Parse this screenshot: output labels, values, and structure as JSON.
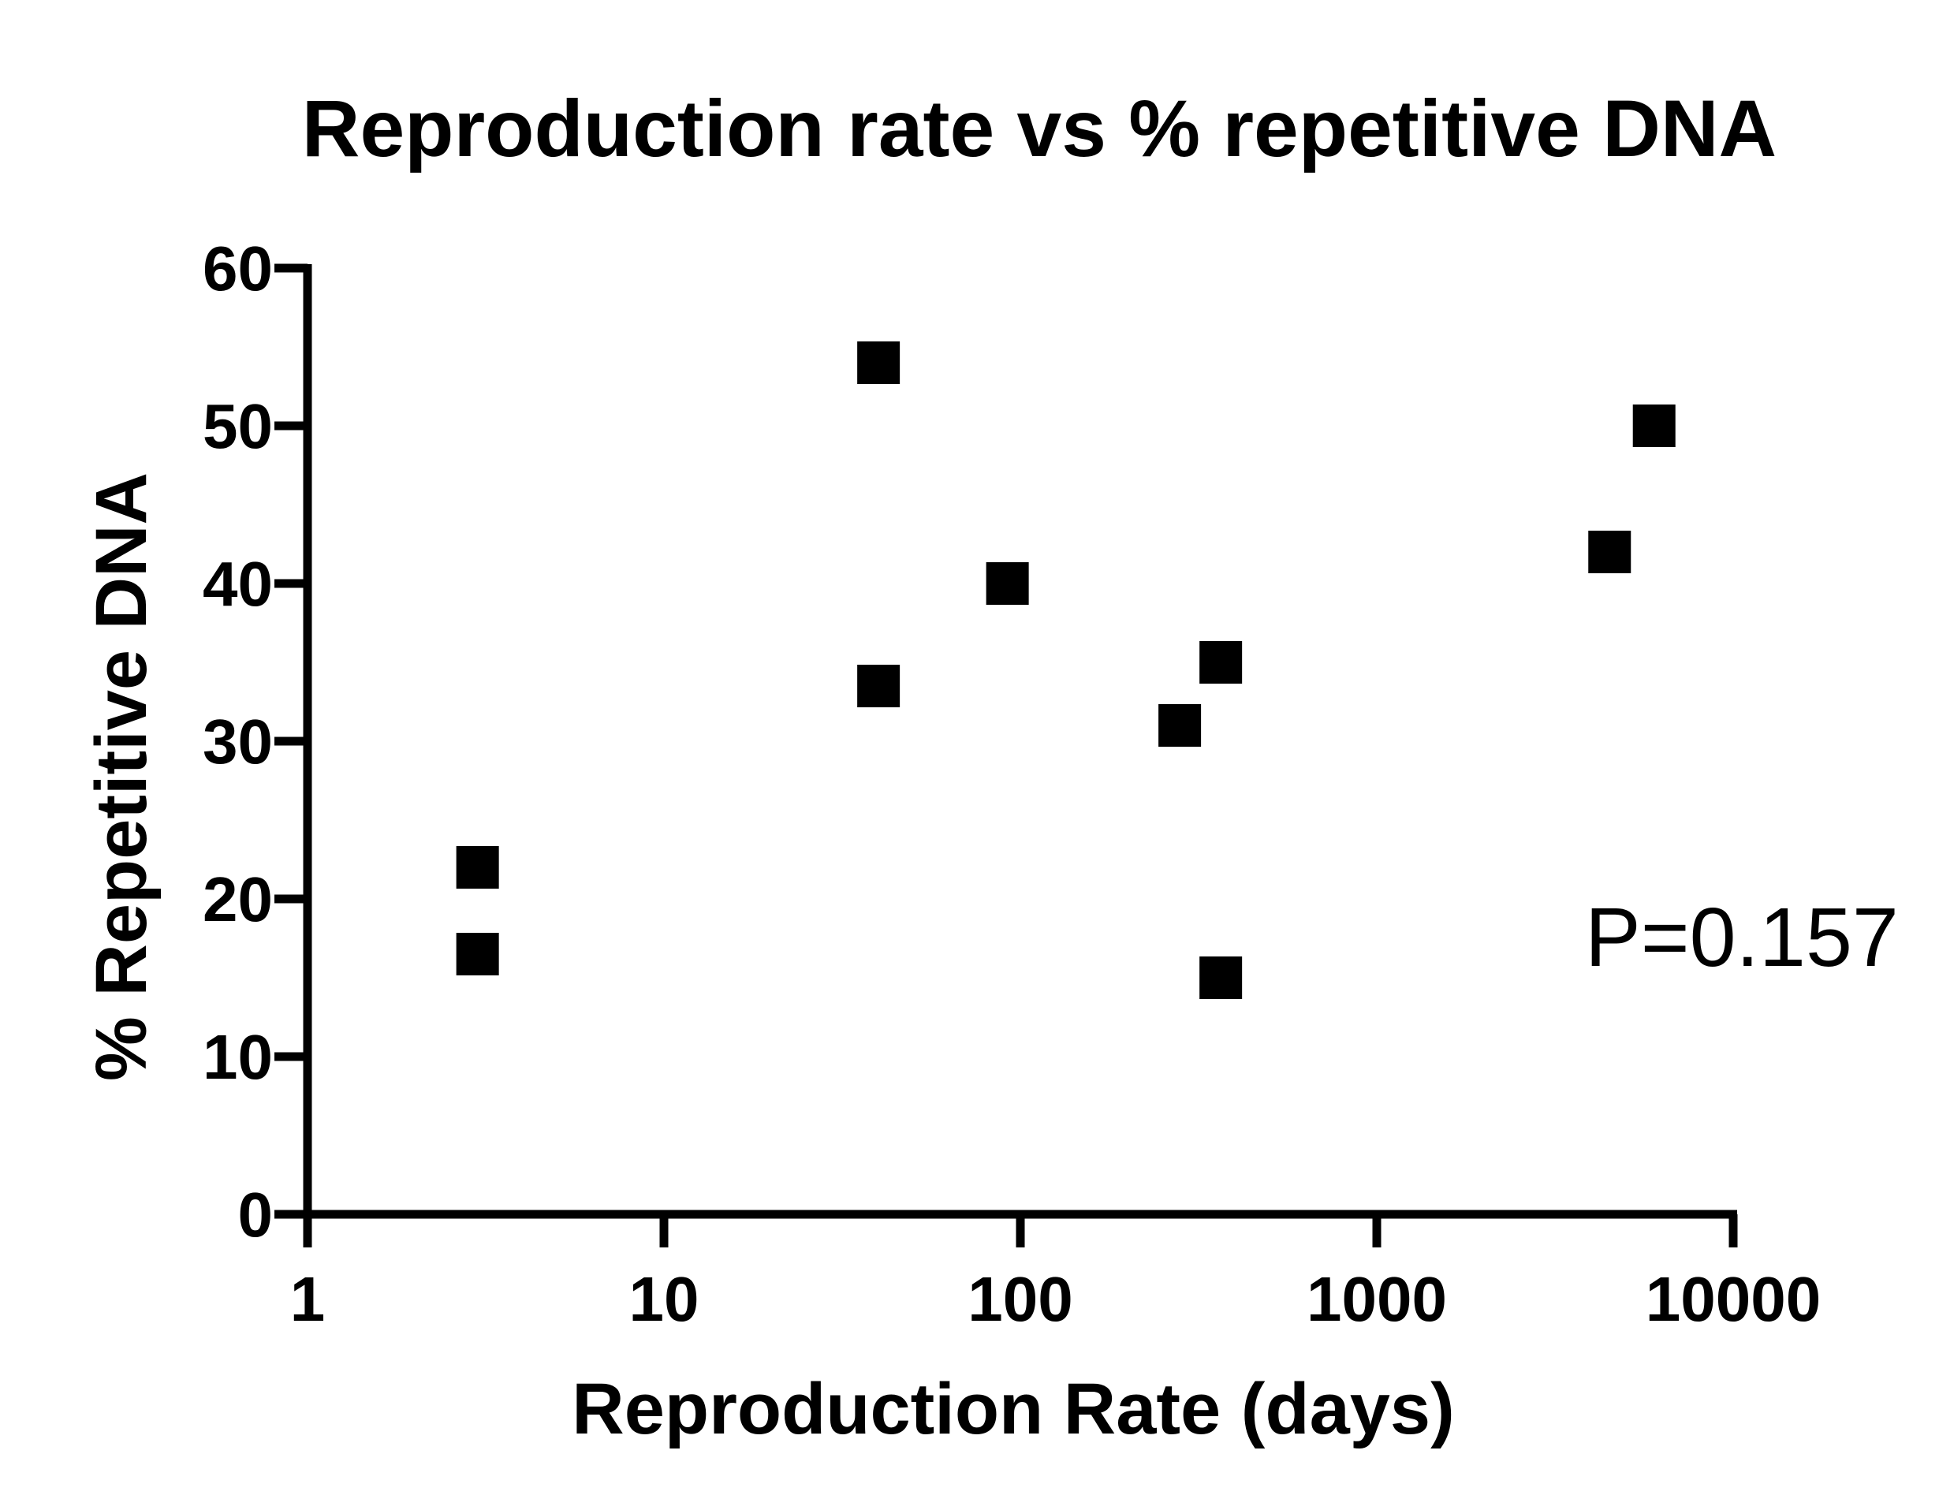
{
  "chart_data": {
    "type": "scatter",
    "title": "Reproduction rate vs % repetitive DNA",
    "xlabel": "Reproduction Rate (days)",
    "ylabel": "% Repetitive DNA",
    "xscale": "log",
    "xlim": [
      1,
      10000
    ],
    "ylim": [
      0,
      60
    ],
    "x_ticks": [
      1,
      10,
      100,
      1000,
      10000
    ],
    "x_tick_labels": [
      "1",
      "10",
      "100",
      "1000",
      "10000"
    ],
    "y_ticks": [
      0,
      10,
      20,
      30,
      40,
      50,
      60
    ],
    "y_tick_labels": [
      "0",
      "10",
      "20",
      "30",
      "40",
      "50",
      "60"
    ],
    "grid": false,
    "marker": "square",
    "marker_color": "#000000",
    "annotation": "P=0.157",
    "points": [
      {
        "x": 3,
        "y": 22
      },
      {
        "x": 3,
        "y": 16.5
      },
      {
        "x": 40,
        "y": 54
      },
      {
        "x": 40,
        "y": 33.5
      },
      {
        "x": 92,
        "y": 40
      },
      {
        "x": 280,
        "y": 31
      },
      {
        "x": 365,
        "y": 35
      },
      {
        "x": 365,
        "y": 15
      },
      {
        "x": 4500,
        "y": 42
      },
      {
        "x": 6000,
        "y": 50
      }
    ]
  }
}
